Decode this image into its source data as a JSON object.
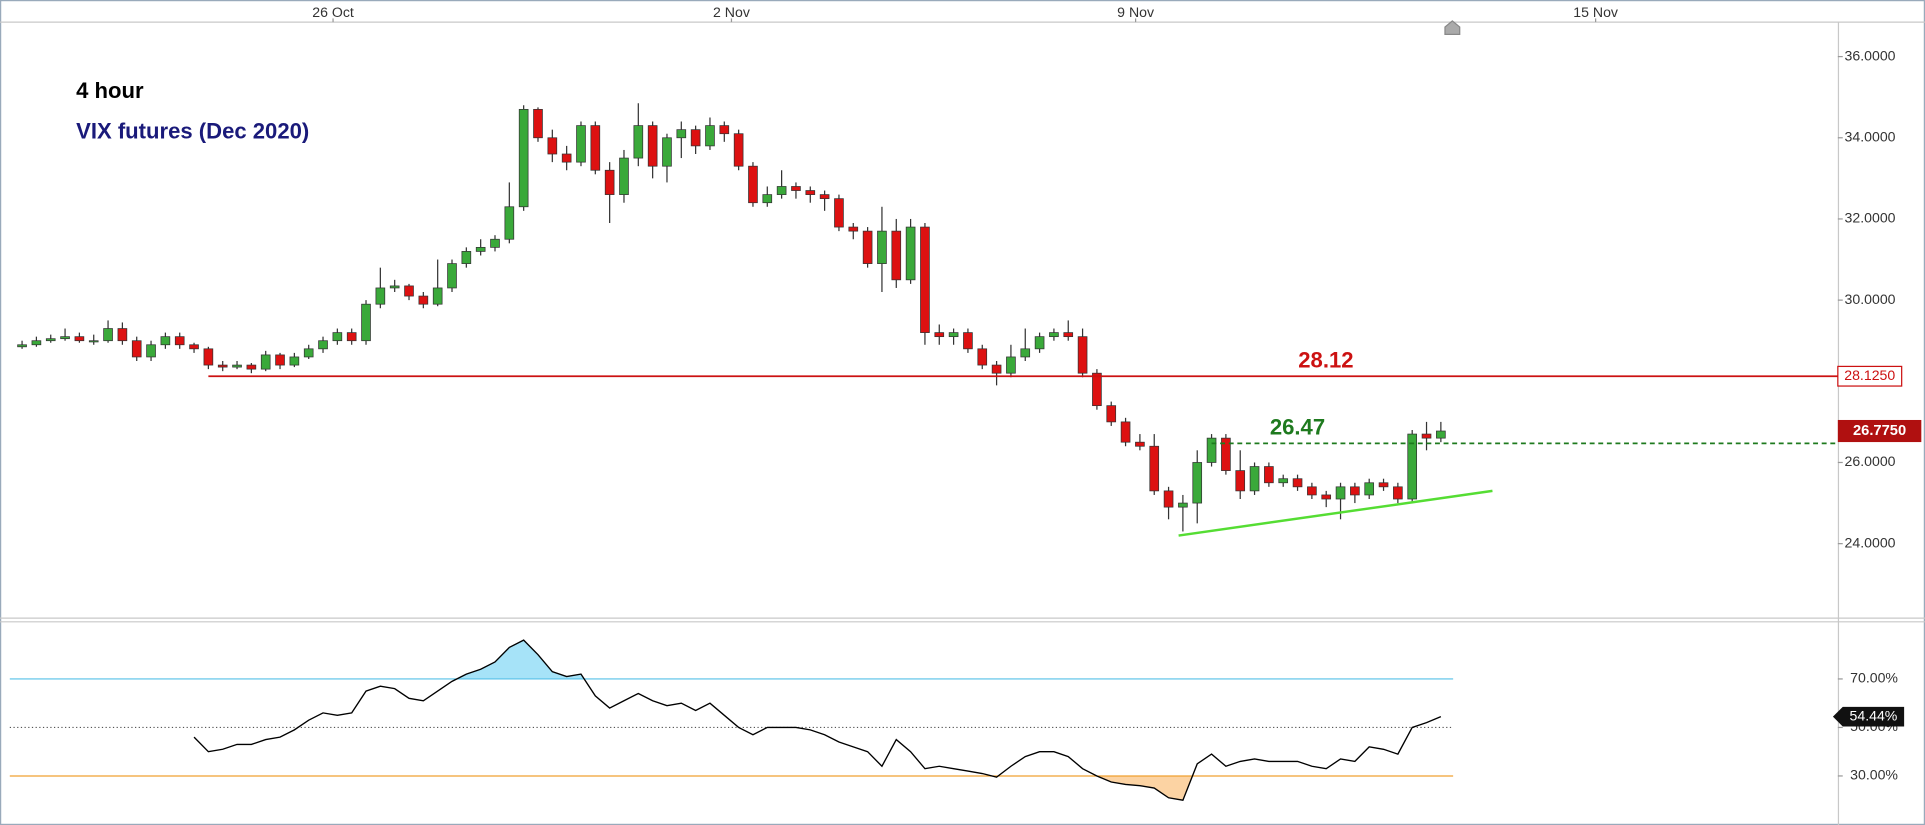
{
  "chart_data": [
    {
      "type": "candlestick",
      "title": "4 hour",
      "subtitle": "VIX futures (Dec 2020)",
      "up_color": "#3aa93a",
      "down_color": "#dd1111",
      "xlim": [
        -1.54,
        126.7
      ],
      "xticks": [
        {
          "value": 21.7,
          "label": "26 Oct"
        },
        {
          "value": 49.5,
          "label": "2 Nov"
        },
        {
          "value": 77.7,
          "label": "9 Nov"
        },
        {
          "value": 109.8,
          "label": "15 Nov"
        }
      ],
      "ylim": [
        22.18,
        36.85
      ],
      "yticks": [
        {
          "value": 24,
          "label": "24.0000"
        },
        {
          "value": 26,
          "label": "26.0000"
        },
        {
          "value": 28,
          "label": "28.0000"
        },
        {
          "value": 30,
          "label": "30.0000"
        },
        {
          "value": 32,
          "label": "32.0000"
        },
        {
          "value": 34,
          "label": "34.0000"
        },
        {
          "value": 36,
          "label": "36.0000"
        }
      ],
      "ohlc": [
        [
          28.85,
          29.0,
          28.8,
          28.9
        ],
        [
          28.9,
          29.1,
          28.85,
          29.0
        ],
        [
          29.0,
          29.15,
          28.95,
          29.05
        ],
        [
          29.05,
          29.3,
          29.0,
          29.1
        ],
        [
          29.1,
          29.2,
          28.95,
          29.0
        ],
        [
          29.0,
          29.15,
          28.9,
          29.0
        ],
        [
          29.0,
          29.5,
          28.95,
          29.3
        ],
        [
          29.3,
          29.45,
          28.9,
          29.0
        ],
        [
          29.0,
          29.1,
          28.5,
          28.6
        ],
        [
          28.6,
          29.0,
          28.5,
          28.9
        ],
        [
          28.9,
          29.2,
          28.8,
          29.1
        ],
        [
          29.1,
          29.2,
          28.8,
          28.9
        ],
        [
          28.9,
          28.95,
          28.7,
          28.8
        ],
        [
          28.8,
          28.85,
          28.3,
          28.4
        ],
        [
          28.4,
          28.5,
          28.25,
          28.35
        ],
        [
          28.35,
          28.5,
          28.3,
          28.4
        ],
        [
          28.4,
          28.45,
          28.2,
          28.3
        ],
        [
          28.3,
          28.75,
          28.25,
          28.65
        ],
        [
          28.65,
          28.7,
          28.3,
          28.4
        ],
        [
          28.4,
          28.7,
          28.35,
          28.6
        ],
        [
          28.6,
          28.9,
          28.55,
          28.8
        ],
        [
          28.8,
          29.1,
          28.7,
          29.0
        ],
        [
          29.0,
          29.3,
          28.9,
          29.2
        ],
        [
          29.2,
          29.3,
          28.9,
          29.0
        ],
        [
          29.0,
          30.0,
          28.9,
          29.9
        ],
        [
          29.9,
          30.8,
          29.8,
          30.3
        ],
        [
          30.3,
          30.5,
          30.2,
          30.35
        ],
        [
          30.35,
          30.4,
          30.0,
          30.1
        ],
        [
          30.1,
          30.2,
          29.8,
          29.9
        ],
        [
          29.9,
          31.0,
          29.85,
          30.3
        ],
        [
          30.3,
          31.0,
          30.2,
          30.9
        ],
        [
          30.9,
          31.3,
          30.8,
          31.2
        ],
        [
          31.2,
          31.5,
          31.1,
          31.3
        ],
        [
          31.3,
          31.6,
          31.2,
          31.5
        ],
        [
          31.5,
          32.9,
          31.4,
          32.3
        ],
        [
          32.3,
          34.8,
          32.2,
          34.7
        ],
        [
          34.7,
          34.75,
          33.9,
          34.0
        ],
        [
          34.0,
          34.2,
          33.4,
          33.6
        ],
        [
          33.6,
          33.8,
          33.2,
          33.4
        ],
        [
          33.4,
          34.4,
          33.3,
          34.3
        ],
        [
          34.3,
          34.4,
          33.1,
          33.2
        ],
        [
          33.2,
          33.4,
          31.9,
          32.6
        ],
        [
          32.6,
          33.7,
          32.4,
          33.5
        ],
        [
          33.5,
          34.85,
          33.3,
          34.3
        ],
        [
          34.3,
          34.4,
          33.0,
          33.3
        ],
        [
          33.3,
          34.1,
          32.9,
          34.0
        ],
        [
          34.0,
          34.4,
          33.5,
          34.2
        ],
        [
          34.2,
          34.3,
          33.6,
          33.8
        ],
        [
          33.8,
          34.5,
          33.7,
          34.3
        ],
        [
          34.3,
          34.4,
          33.9,
          34.1
        ],
        [
          34.1,
          34.2,
          33.2,
          33.3
        ],
        [
          33.3,
          33.4,
          32.3,
          32.4
        ],
        [
          32.4,
          32.8,
          32.3,
          32.6
        ],
        [
          32.6,
          33.2,
          32.5,
          32.8
        ],
        [
          32.8,
          32.9,
          32.5,
          32.7
        ],
        [
          32.7,
          32.8,
          32.4,
          32.6
        ],
        [
          32.6,
          32.7,
          32.2,
          32.5
        ],
        [
          32.5,
          32.6,
          31.7,
          31.8
        ],
        [
          31.8,
          31.9,
          31.5,
          31.7
        ],
        [
          31.7,
          31.8,
          30.8,
          30.9
        ],
        [
          30.9,
          32.3,
          30.2,
          31.7
        ],
        [
          31.7,
          32.0,
          30.3,
          30.5
        ],
        [
          30.5,
          32.0,
          30.4,
          31.8
        ],
        [
          31.8,
          31.9,
          28.9,
          29.2
        ],
        [
          29.2,
          29.4,
          28.9,
          29.1
        ],
        [
          29.1,
          29.3,
          28.9,
          29.2
        ],
        [
          29.2,
          29.3,
          28.7,
          28.8
        ],
        [
          28.8,
          28.9,
          28.3,
          28.4
        ],
        [
          28.4,
          28.5,
          27.9,
          28.2
        ],
        [
          28.2,
          28.9,
          28.1,
          28.6
        ],
        [
          28.6,
          29.3,
          28.5,
          28.8
        ],
        [
          28.8,
          29.2,
          28.7,
          29.1
        ],
        [
          29.1,
          29.3,
          29.0,
          29.2
        ],
        [
          29.2,
          29.5,
          29.0,
          29.1
        ],
        [
          29.1,
          29.3,
          28.1,
          28.2
        ],
        [
          28.2,
          28.3,
          27.3,
          27.4
        ],
        [
          27.4,
          27.5,
          26.9,
          27.0
        ],
        [
          27.0,
          27.1,
          26.4,
          26.5
        ],
        [
          26.5,
          26.7,
          26.3,
          26.4
        ],
        [
          26.4,
          26.7,
          25.2,
          25.3
        ],
        [
          25.3,
          25.4,
          24.6,
          24.9
        ],
        [
          24.9,
          25.2,
          24.3,
          25.0
        ],
        [
          25.0,
          26.3,
          24.5,
          26.0
        ],
        [
          26.0,
          26.7,
          25.9,
          26.6
        ],
        [
          26.6,
          26.7,
          25.7,
          25.8
        ],
        [
          25.8,
          26.3,
          25.1,
          25.3
        ],
        [
          25.3,
          26.0,
          25.2,
          25.9
        ],
        [
          25.9,
          26.0,
          25.4,
          25.5
        ],
        [
          25.5,
          25.7,
          25.4,
          25.6
        ],
        [
          25.6,
          25.7,
          25.3,
          25.4
        ],
        [
          25.4,
          25.5,
          25.1,
          25.2
        ],
        [
          25.2,
          25.3,
          24.9,
          25.1
        ],
        [
          25.1,
          25.5,
          24.6,
          25.4
        ],
        [
          25.4,
          25.5,
          25.0,
          25.2
        ],
        [
          25.2,
          25.6,
          25.1,
          25.5
        ],
        [
          25.5,
          25.6,
          25.3,
          25.4
        ],
        [
          25.4,
          25.5,
          25.0,
          25.1
        ],
        [
          25.1,
          26.8,
          25.0,
          26.7
        ],
        [
          26.7,
          27.0,
          26.3,
          26.6
        ],
        [
          26.6,
          27.0,
          26.5,
          26.775
        ]
      ],
      "levels": [
        {
          "value": 28.125,
          "label": "28.12",
          "axis_label": "28.1250",
          "color": "#cc1111",
          "start": 13
        },
        {
          "value": 26.47,
          "label": "26.47",
          "color": "#1e7a1e",
          "dashed": true,
          "start": 83
        }
      ],
      "last_price": {
        "value": 26.775,
        "label": "26.7750",
        "color": "#b01010"
      },
      "trendline": {
        "x": [
          80.7,
          102.6
        ],
        "y": [
          24.2,
          25.3
        ],
        "color": "#55dd33"
      }
    },
    {
      "type": "line",
      "color": "#000000",
      "ylim": [
        11.8,
        93.3
      ],
      "yticks": [
        {
          "value": 30,
          "label": "30.00%"
        },
        {
          "value": 50,
          "label": "50.00%"
        },
        {
          "value": 70,
          "label": "70.00%"
        }
      ],
      "levels": [
        {
          "value": 70,
          "color": "#55c0e8"
        },
        {
          "value": 50,
          "color": "#555555",
          "dashed": true
        },
        {
          "value": 30,
          "color": "#f0a030"
        }
      ],
      "overbought": 70,
      "oversold": 30,
      "overbought_fill": "#a6e3f8",
      "oversold_fill": "#fcd3a3",
      "values": [
        null,
        null,
        null,
        null,
        null,
        null,
        null,
        null,
        null,
        null,
        null,
        null,
        46,
        40,
        41,
        43,
        43,
        45,
        46,
        49,
        53,
        56,
        55,
        56,
        65,
        67,
        66,
        62,
        61,
        65,
        69,
        72,
        74,
        77,
        83,
        86,
        80,
        73,
        71,
        72,
        63,
        58,
        61,
        64,
        61,
        59,
        60,
        57,
        60,
        55,
        50,
        47,
        50,
        50,
        50,
        49,
        47,
        44,
        42,
        40,
        34,
        45,
        40,
        33,
        34,
        33,
        32,
        31,
        29.5,
        34,
        38,
        40,
        40,
        38,
        33,
        30,
        27.5,
        26.5,
        26,
        25,
        21,
        20,
        35,
        39,
        34,
        36,
        37,
        36,
        36,
        36,
        34,
        33,
        37,
        36,
        42,
        41,
        39,
        50,
        52,
        54.44
      ],
      "last": {
        "value": 54.44,
        "label": "54.44%"
      }
    }
  ]
}
